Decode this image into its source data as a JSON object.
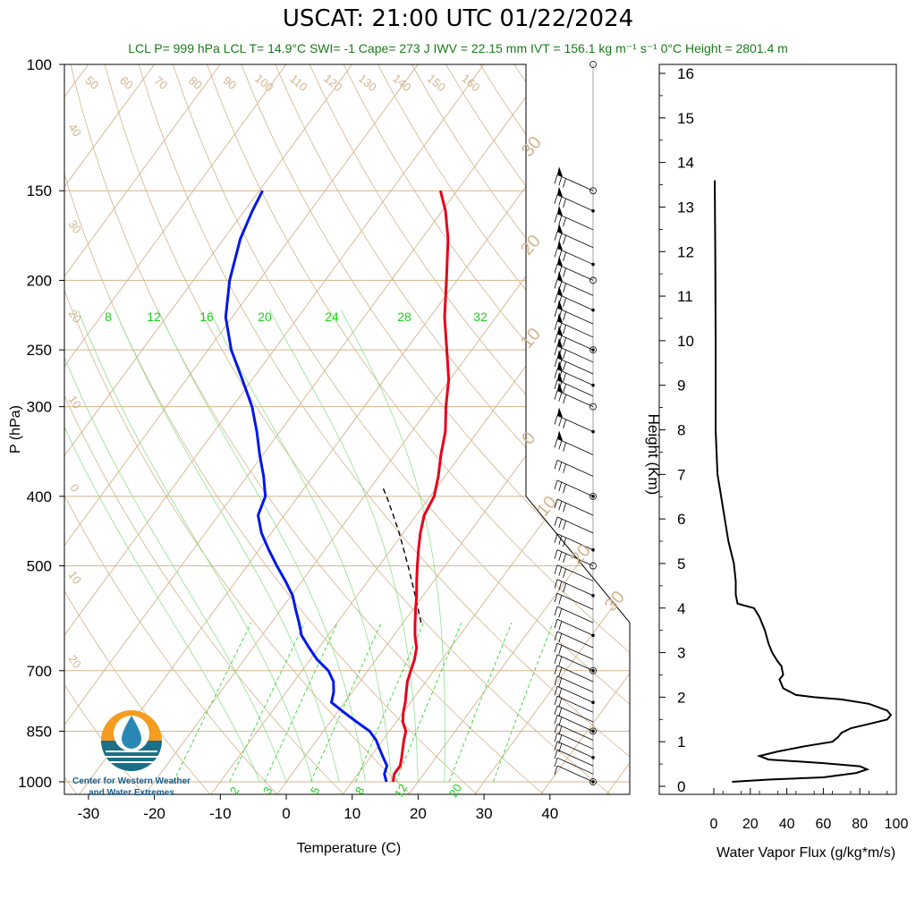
{
  "title": "USCAT: 21:00 UTC 01/22/2024",
  "subtitle": "LCL P= 999 hPa  LCL T= 14.9°C  SWI= -1  Cape= 273 J  IWV = 22.15 mm  IVT = 156.1 kg m⁻¹ s⁻¹  0°C Height = 2801.4 m",
  "logo": {
    "text_line1": "Center for Western Weather",
    "text_line2": "and Water Extremes"
  },
  "colors": {
    "temperature": "#e8001a",
    "dewpoint": "#0018e8",
    "adiabat": "#d2b48c",
    "mixing_ratio": "#19d219",
    "parcel": "#000000",
    "isobar": "#d2b48c"
  },
  "chart_data": [
    {
      "type": "line",
      "name": "skew-t",
      "xlabel": "Temperature (C)",
      "ylabel": "P (hPa)",
      "xlim": [
        -35,
        52
      ],
      "ylim": [
        1020,
        100
      ],
      "y_scale": "log",
      "x_ticks": [
        -30,
        -20,
        -10,
        0,
        10,
        20,
        30,
        40
      ],
      "y_ticks": [
        100,
        150,
        200,
        250,
        300,
        400,
        500,
        700,
        850,
        1000
      ],
      "isotherm_labels": [
        "50",
        "60",
        "70",
        "80",
        "90",
        "100",
        "110",
        "120",
        "130",
        "140",
        "150",
        "160",
        "40",
        "30",
        "20",
        "10",
        "0",
        "10",
        "20"
      ],
      "theta_e_labels": [
        "8",
        "12",
        "16",
        "20",
        "24",
        "28",
        "32"
      ],
      "mixing_ratio_labels": [
        "2",
        "3",
        "5",
        "8",
        "12",
        "20"
      ],
      "side_labels": [
        "30",
        "20",
        "10",
        "0",
        "10",
        "20",
        "30"
      ],
      "series": [
        {
          "name": "Temperature",
          "points": [
            [
              16.2,
              1000
            ],
            [
              15.5,
              975
            ],
            [
              15.5,
              950
            ],
            [
              14.8,
              925
            ],
            [
              14.0,
              900
            ],
            [
              13.2,
              875
            ],
            [
              12.5,
              850
            ],
            [
              11.0,
              825
            ],
            [
              10.0,
              800
            ],
            [
              9.2,
              775
            ],
            [
              8.2,
              750
            ],
            [
              7.2,
              725
            ],
            [
              6.5,
              700
            ],
            [
              5.8,
              675
            ],
            [
              4.8,
              650
            ],
            [
              3.2,
              625
            ],
            [
              1.8,
              600
            ],
            [
              0.4,
              575
            ],
            [
              -1.0,
              550
            ],
            [
              -2.6,
              525
            ],
            [
              -4.2,
              500
            ],
            [
              -5.8,
              475
            ],
            [
              -7.4,
              450
            ],
            [
              -8.8,
              425
            ],
            [
              -9.4,
              400
            ],
            [
              -11.0,
              375
            ],
            [
              -13.0,
              350
            ],
            [
              -14.9,
              325
            ],
            [
              -17.6,
              300
            ],
            [
              -20.2,
              275
            ],
            [
              -23.8,
              250
            ],
            [
              -27.8,
              225
            ],
            [
              -31.6,
              200
            ],
            [
              -36.0,
              175
            ],
            [
              -39.5,
              160
            ],
            [
              -42.5,
              150
            ]
          ]
        },
        {
          "name": "Dewpoint",
          "points": [
            [
              15.2,
              1000
            ],
            [
              14.0,
              975
            ],
            [
              13.5,
              950
            ],
            [
              12.0,
              925
            ],
            [
              10.5,
              900
            ],
            [
              9.0,
              875
            ],
            [
              7.0,
              850
            ],
            [
              4.0,
              825
            ],
            [
              1.0,
              800
            ],
            [
              -2.0,
              775
            ],
            [
              -2.8,
              750
            ],
            [
              -4.0,
              725
            ],
            [
              -6.0,
              700
            ],
            [
              -9.0,
              675
            ],
            [
              -11.5,
              650
            ],
            [
              -14.0,
              625
            ],
            [
              -15.8,
              600
            ],
            [
              -17.8,
              575
            ],
            [
              -19.8,
              550
            ],
            [
              -22.5,
              525
            ],
            [
              -25.5,
              500
            ],
            [
              -28.5,
              475
            ],
            [
              -31.5,
              450
            ],
            [
              -34.0,
              425
            ],
            [
              -35.0,
              400
            ],
            [
              -37.5,
              375
            ],
            [
              -40.5,
              350
            ],
            [
              -43.5,
              325
            ],
            [
              -47.0,
              300
            ],
            [
              -51.5,
              275
            ],
            [
              -56.5,
              250
            ],
            [
              -61.0,
              225
            ],
            [
              -64.5,
              200
            ],
            [
              -67.5,
              175
            ],
            [
              -68.8,
              160
            ],
            [
              -69.5,
              150
            ]
          ]
        },
        {
          "name": "Parcel",
          "points": [
            [
              2.7,
              600
            ],
            [
              -1.2,
              550
            ],
            [
              -5.6,
              500
            ],
            [
              -10.6,
              450
            ],
            [
              -13.5,
              425
            ],
            [
              -16.6,
              400
            ],
            [
              -18.0,
              390
            ]
          ]
        }
      ],
      "wind_barbs_levels_hpa": [
        1000,
        975,
        950,
        925,
        900,
        875,
        850,
        825,
        800,
        775,
        750,
        725,
        700,
        675,
        650,
        625,
        600,
        575,
        550,
        525,
        500,
        475,
        450,
        425,
        400,
        375,
        350,
        325,
        300,
        290,
        280,
        270,
        260,
        250,
        240,
        230,
        220,
        210,
        200,
        190,
        180,
        170,
        160,
        150
      ],
      "wind_barb_speeds_kt": [
        10,
        15,
        18,
        20,
        22,
        22,
        22,
        22,
        22,
        22,
        22,
        24,
        24,
        25,
        25,
        26,
        27,
        28,
        30,
        32,
        34,
        36,
        38,
        40,
        45,
        48,
        52,
        55,
        60,
        62,
        64,
        66,
        68,
        70,
        72,
        74,
        76,
        76,
        78,
        78,
        80,
        80,
        80,
        82
      ],
      "side_labels_note": "",
      "ivt_flux_label": ""
    },
    {
      "type": "line",
      "name": "water-vapor-flux",
      "xlabel": "Water Vapor Flux (g/kg*m/s)",
      "ylabel": "Height (Km)",
      "xlim": [
        0,
        100
      ],
      "ylim": [
        -0.2,
        16.3
      ],
      "x_ticks": [
        0,
        20,
        40,
        60,
        80,
        100
      ],
      "y_ticks": [
        0,
        1,
        2,
        3,
        4,
        5,
        6,
        7,
        8,
        9,
        10,
        11,
        12,
        13,
        14,
        15,
        16
      ],
      "series": [
        {
          "name": "flux",
          "points": [
            [
              10,
              0.1
            ],
            [
              30,
              0.15
            ],
            [
              60,
              0.2
            ],
            [
              78,
              0.3
            ],
            [
              84,
              0.38
            ],
            [
              80,
              0.45
            ],
            [
              60,
              0.52
            ],
            [
              30,
              0.6
            ],
            [
              25,
              0.68
            ],
            [
              35,
              0.78
            ],
            [
              50,
              0.9
            ],
            [
              65,
              1.0
            ],
            [
              68,
              1.1
            ],
            [
              70,
              1.2
            ],
            [
              75,
              1.3
            ],
            [
              85,
              1.4
            ],
            [
              95,
              1.5
            ],
            [
              97,
              1.6
            ],
            [
              95,
              1.7
            ],
            [
              85,
              1.85
            ],
            [
              70,
              1.95
            ],
            [
              55,
              2.0
            ],
            [
              45,
              2.05
            ],
            [
              38,
              2.2
            ],
            [
              36,
              2.4
            ],
            [
              38,
              2.5
            ],
            [
              37,
              2.7
            ],
            [
              35,
              2.8
            ],
            [
              32,
              3.0
            ],
            [
              30,
              3.2
            ],
            [
              28,
              3.5
            ],
            [
              25,
              3.8
            ],
            [
              22,
              4.0
            ],
            [
              13,
              4.1
            ],
            [
              12,
              4.3
            ],
            [
              12,
              4.6
            ],
            [
              11,
              5.0
            ],
            [
              8,
              5.5
            ],
            [
              6,
              6.0
            ],
            [
              4,
              6.5
            ],
            [
              2,
              7.0
            ],
            [
              1,
              8.0
            ],
            [
              1,
              10.0
            ],
            [
              0.8,
              12.0
            ],
            [
              0.5,
              13.6
            ]
          ]
        }
      ]
    }
  ]
}
